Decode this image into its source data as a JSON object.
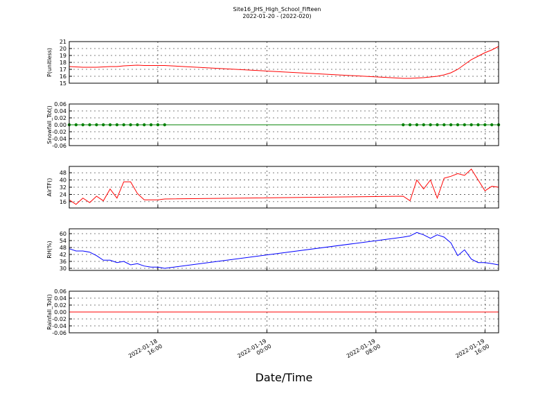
{
  "chart_data": {
    "type": "line",
    "title": "Site16_JHS_High_School_Fifteen",
    "subtitle": "2022-01-20 - (2022-020)",
    "xlabel": "Date/Time",
    "x": [
      "2022-01-18 09:30",
      "2022-01-18 10:00",
      "2022-01-18 10:30",
      "2022-01-18 11:00",
      "2022-01-18 11:30",
      "2022-01-18 12:00",
      "2022-01-18 12:30",
      "2022-01-18 13:00",
      "2022-01-18 13:30",
      "2022-01-18 14:00",
      "2022-01-18 14:30",
      "2022-01-18 15:00",
      "2022-01-18 15:30",
      "2022-01-18 16:00",
      "2022-01-18 16:30",
      "2022-01-19 10:00",
      "2022-01-19 10:30",
      "2022-01-19 11:00",
      "2022-01-19 11:30",
      "2022-01-19 12:00",
      "2022-01-19 12:30",
      "2022-01-19 13:00",
      "2022-01-19 13:30",
      "2022-01-19 14:00",
      "2022-01-19 14:30",
      "2022-01-19 15:00",
      "2022-01-19 15:30",
      "2022-01-19 16:00",
      "2022-01-19 16:30",
      "2022-01-19 17:00"
    ],
    "xlim": [
      "2022-01-18 09:30",
      "2022-01-19 17:00"
    ],
    "xticks": [
      "2022-01-18 16:00",
      "2022-01-19 00:00",
      "2022-01-19 08:00",
      "2022-01-19 16:00"
    ],
    "grid": true,
    "panels": [
      {
        "ylabel": "P(unitless)",
        "color": "#ff0000",
        "ylim": [
          15,
          21
        ],
        "yticks": [
          15,
          16,
          17,
          18,
          19,
          20,
          21
        ],
        "values": [
          17.4,
          17.35,
          17.3,
          17.3,
          17.3,
          17.35,
          17.4,
          17.4,
          17.5,
          17.55,
          17.6,
          17.55,
          17.55,
          17.55,
          17.55,
          15.7,
          15.7,
          15.75,
          15.8,
          15.9,
          16.0,
          16.2,
          16.5,
          17.0,
          17.7,
          18.4,
          18.9,
          19.4,
          19.8,
          20.3
        ]
      },
      {
        "ylabel": "Snowfall_Tot()",
        "color": "#008000",
        "markers": true,
        "ylim": [
          -0.06,
          0.06
        ],
        "yticks": [
          -0.06,
          -0.04,
          -0.02,
          {
            "value": 0,
            "label": "0.00"
          },
          0.02,
          0.04,
          0.06
        ],
        "values": [
          0,
          0,
          0,
          0,
          0,
          0,
          0,
          0,
          0,
          0,
          0,
          0,
          0,
          0,
          0,
          0,
          0,
          0,
          0,
          0,
          0,
          0,
          0,
          0,
          0,
          0,
          0,
          0,
          0,
          0
        ]
      },
      {
        "ylabel": "AirTF()",
        "color": "#ff0000",
        "ylim": [
          9,
          55
        ],
        "yticks": [
          16,
          24,
          32,
          40,
          48
        ],
        "values": [
          18,
          13,
          20,
          15,
          22,
          17,
          30,
          20,
          38,
          38,
          25,
          18,
          18,
          18,
          19,
          22,
          17,
          40,
          30,
          40,
          20,
          42,
          44,
          47,
          45,
          52,
          40,
          28,
          33,
          32
        ]
      },
      {
        "ylabel": "RH(%)",
        "color": "#0000ff",
        "ylim": [
          28.2,
          64.2
        ],
        "yticks": [
          30,
          36,
          42,
          48,
          54,
          60
        ],
        "values": [
          47,
          45,
          45,
          44,
          41,
          37,
          37,
          35,
          36,
          33,
          34,
          32,
          31,
          31,
          30,
          57,
          58,
          61,
          59,
          56,
          59,
          57,
          52,
          41,
          46,
          38,
          35,
          35,
          34,
          33
        ]
      },
      {
        "ylabel": "Rainfall_Tot()",
        "color": "#ff0000",
        "ylim": [
          -0.06,
          0.06
        ],
        "yticks": [
          -0.06,
          -0.04,
          -0.02,
          {
            "value": 0,
            "label": "0.00"
          },
          0.02,
          0.04,
          0.06
        ],
        "values": [
          0,
          0,
          0,
          0,
          0,
          0,
          0,
          0,
          0,
          0,
          0,
          0,
          0,
          0,
          0,
          0,
          0,
          0,
          0,
          0,
          0,
          0,
          0,
          0,
          0,
          0,
          0,
          0,
          0,
          0
        ]
      }
    ]
  }
}
